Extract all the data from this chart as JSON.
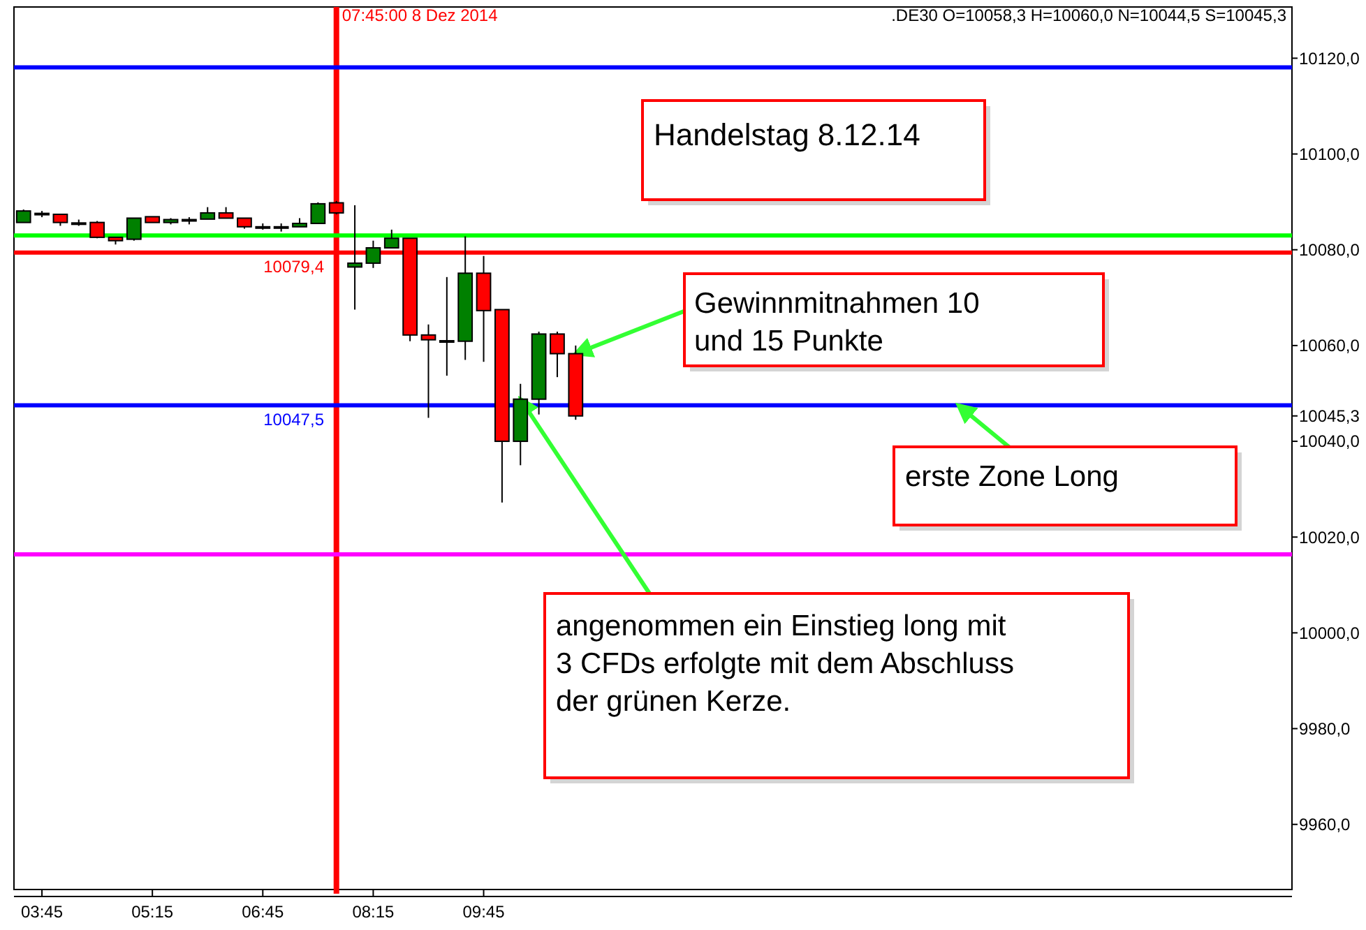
{
  "chart_data": {
    "type": "candlestick",
    "x": [
      3.5,
      3.75,
      4,
      4.25,
      4.5,
      4.75,
      5,
      5.25,
      5.5,
      5.75,
      6,
      6.25,
      6.5,
      6.75,
      7,
      7.25,
      7.5,
      7.75,
      8,
      8.25,
      8.5,
      8.75,
      9,
      9.25,
      9.5,
      9.75,
      10,
      10.25,
      10.5,
      10.75,
      11
    ],
    "ohlc": [
      [
        10085.7,
        10088.4,
        10085.7,
        10088.1
      ],
      [
        10087.4,
        10088.1,
        10086.8,
        10087.6
      ],
      [
        10087.4,
        10087.4,
        10085.0,
        10085.7
      ],
      [
        10085.6,
        10086.3,
        10085.0,
        10085.5
      ],
      [
        10085.7,
        10086.0,
        10082.4,
        10082.6
      ],
      [
        10082.6,
        10082.6,
        10081.1,
        10081.9
      ],
      [
        10082.2,
        10086.6,
        10081.9,
        10086.6
      ],
      [
        10086.9,
        10086.9,
        10085.7,
        10085.7
      ],
      [
        10085.7,
        10086.6,
        10085.3,
        10086.3
      ],
      [
        10086.3,
        10086.8,
        10085.3,
        10086.2
      ],
      [
        10086.4,
        10088.9,
        10086.4,
        10087.7
      ],
      [
        10087.7,
        10088.9,
        10086.6,
        10086.6
      ],
      [
        10086.6,
        10086.6,
        10084.4,
        10084.8
      ],
      [
        10084.8,
        10085.5,
        10084.2,
        10084.8
      ],
      [
        10084.8,
        10085.5,
        10083.8,
        10084.8
      ],
      [
        10084.8,
        10086.6,
        10084.8,
        10085.5
      ],
      [
        10085.5,
        10089.9,
        10085.5,
        10089.6
      ],
      [
        10089.8,
        10090.2,
        10087.4,
        10087.7
      ],
      [
        10076.4,
        10089.3,
        10067.5,
        10077.2
      ],
      [
        10077.2,
        10081.9,
        10076.2,
        10080.4
      ],
      [
        10080.4,
        10084.2,
        10080.4,
        10082.4
      ],
      [
        10082.4,
        10082.4,
        10060.9,
        10062.2
      ],
      [
        10062.2,
        10064.4,
        10044.9,
        10061.2
      ],
      [
        10061.0,
        10074.3,
        10053.7,
        10061.0
      ],
      [
        10060.9,
        10082.8,
        10057.0,
        10075.1
      ],
      [
        10075.1,
        10078.7,
        10056.6,
        10067.3
      ],
      [
        10067.5,
        10067.5,
        10027.2,
        10040.0
      ],
      [
        10040.0,
        10052.0,
        10035.0,
        10048.8
      ],
      [
        10048.8,
        10062.9,
        10045.6,
        10062.4
      ],
      [
        10062.4,
        10062.9,
        10053.4,
        10058.3
      ],
      [
        10058.3,
        10060.0,
        10044.5,
        10045.3
      ]
    ],
    "colors": [
      "#008000",
      "#008000",
      "#ff0000",
      "#ff0000",
      "#ff0000",
      "#ff0000",
      "#008000",
      "#ff0000",
      "#008000",
      "#ff0000",
      "#008000",
      "#ff0000",
      "#ff0000",
      "#008000",
      "#008000",
      "#008000",
      "#008000",
      "#ff0000",
      "#008000",
      "#008000",
      "#008000",
      "#ff0000",
      "#ff0000",
      "#008000",
      "#008000",
      "#ff0000",
      "#ff0000",
      "#008000",
      "#008000",
      "#ff0000",
      "#ff0000"
    ],
    "xlim": [
      3.37,
      20.73
    ],
    "xticks": [
      {
        "value": 3.75,
        "label": "03:45"
      },
      {
        "value": 5.25,
        "label": "05:15"
      },
      {
        "value": 6.75,
        "label": "06:45"
      },
      {
        "value": 8.25,
        "label": "08:15"
      },
      {
        "value": 9.75,
        "label": "09:45"
      }
    ],
    "ylim": [
      9946.4,
      10130.7
    ],
    "yticks": [
      {
        "value": 9960,
        "label": "9960,0"
      },
      {
        "value": 9980,
        "label": "9980,0"
      },
      {
        "value": 10000,
        "label": "10000,0"
      },
      {
        "value": 10020,
        "label": "10020,0"
      },
      {
        "value": 10040,
        "label": "10040,0"
      },
      {
        "value": 10045.3,
        "label": "10045,3"
      },
      {
        "value": 10060,
        "label": "10060,0"
      },
      {
        "value": 10080,
        "label": "10080,0"
      },
      {
        "value": 10100,
        "label": "10100,0"
      },
      {
        "value": 10120,
        "label": "10120,0"
      }
    ],
    "ref_lines": [
      {
        "axis": "x",
        "value": 7.75,
        "label": "07:45:00 8 Dez 2014",
        "color": "#ff0000"
      },
      {
        "axis": "y",
        "value": 10118.1,
        "color": "#0000ff"
      },
      {
        "axis": "y",
        "value": 10083.0,
        "color": "#00ff00"
      },
      {
        "axis": "y",
        "value": 10079.4,
        "label": "10079,4",
        "color": "#ff0000"
      },
      {
        "axis": "y",
        "value": 10047.5,
        "label": "10047,5",
        "color": "#0000ff"
      },
      {
        "axis": "y",
        "value": 10016.4,
        "color": "#ff00ff"
      }
    ],
    "annotations": [
      ".DE30 O=10058,3 H=10060,0 N=10044,5 S=10045,3",
      "Handelstag 8.12.14",
      {
        "text": "Gewinnmitnahmen 10\nund 15 Punkte",
        "x": 11,
        "y": 10058.3
      },
      {
        "text": "erste Zone Long",
        "x": 16.2,
        "y": 10047.5
      },
      {
        "text": "angenommen ein Einstieg long mit\n3 CFDs erfolgte mit dem Abschluss\nder grünen Kerze.",
        "x": 10.25,
        "y": 10048.8
      }
    ],
    "grid": false
  }
}
